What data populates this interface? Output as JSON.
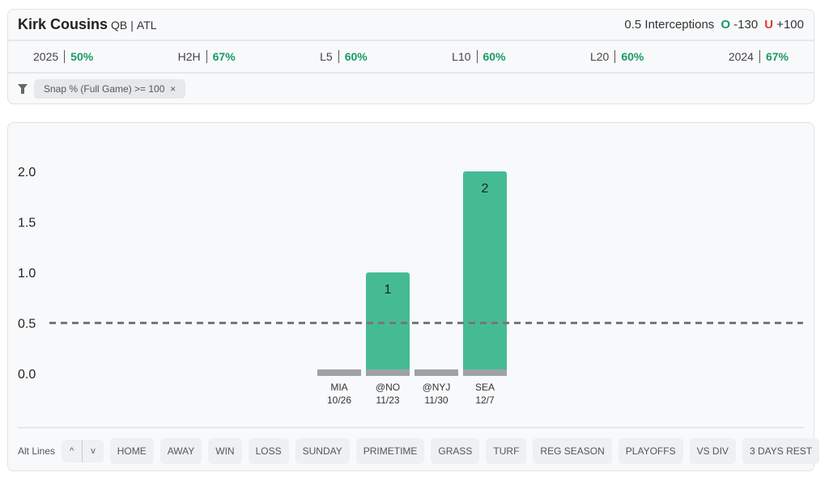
{
  "player": {
    "name": "Kirk Cousins",
    "position": "QB",
    "team": "ATL",
    "sep": "|"
  },
  "market": {
    "label": "0.5 Interceptions",
    "over_tag": "O",
    "over_odds": "-130",
    "under_tag": "U",
    "under_odds": "+100"
  },
  "stats": [
    {
      "label": "2025",
      "value": "50%"
    },
    {
      "label": "H2H",
      "value": "67%"
    },
    {
      "label": "L5",
      "value": "60%"
    },
    {
      "label": "L10",
      "value": "60%"
    },
    {
      "label": "L20",
      "value": "60%"
    },
    {
      "label": "2024",
      "value": "67%"
    }
  ],
  "filter": {
    "icon": "filter-icon",
    "chip": "Snap % (Full Game) >= 100",
    "close": "×"
  },
  "colors": {
    "hit": "#45bb94",
    "base": "#a0a1a3",
    "line": "#777777",
    "positive": "#1a9a63",
    "negative": "#e53935"
  },
  "chart_data": {
    "type": "bar",
    "categories": [
      "MIA 10/26",
      "@NO 11/23",
      "@NYJ 11/30",
      "SEA 12/7"
    ],
    "opponents": [
      "MIA",
      "@NO",
      "@NYJ",
      "SEA"
    ],
    "dates": [
      "10/26",
      "11/23",
      "11/30",
      "12/7"
    ],
    "values": [
      0,
      1,
      0,
      2
    ],
    "ylim": [
      0,
      2
    ],
    "yticks": [
      "0.0",
      "0.5",
      "1.0",
      "1.5",
      "2.0"
    ],
    "threshold": 0.5,
    "grid": false
  },
  "bottom": {
    "alt_lines": "Alt Lines",
    "up": "^",
    "down": "v",
    "filters": [
      "HOME",
      "AWAY",
      "WIN",
      "LOSS",
      "SUNDAY",
      "PRIMETIME",
      "GRASS",
      "TURF",
      "REG SEASON",
      "PLAYOFFS",
      "VS DIV",
      "3 DAYS REST"
    ]
  }
}
